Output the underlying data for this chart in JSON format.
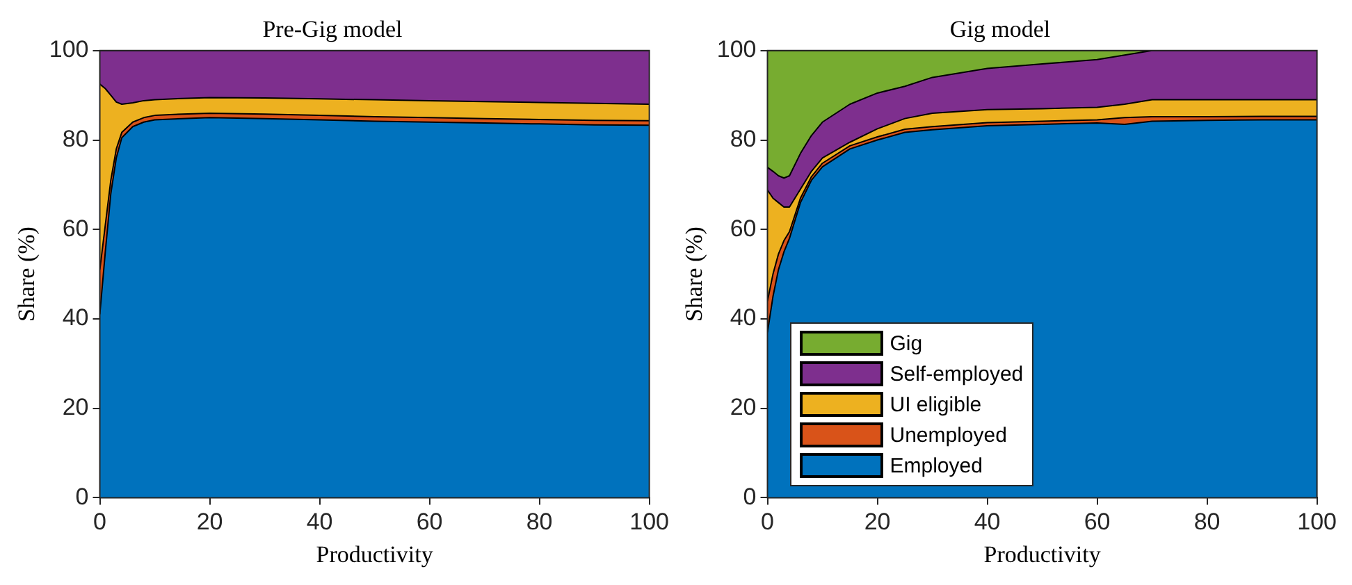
{
  "chart_data": [
    {
      "type": "area",
      "stacked": true,
      "title": "Pre-Gig model",
      "xlabel": "Productivity",
      "ylabel": "Share (%)",
      "xlim": [
        0,
        100
      ],
      "ylim": [
        0,
        100
      ],
      "xticks": [
        0,
        20,
        40,
        60,
        80,
        100
      ],
      "yticks": [
        0,
        20,
        40,
        60,
        80,
        100
      ],
      "grid": false,
      "legend": false,
      "x": [
        0,
        1,
        2,
        3,
        4,
        6,
        8,
        10,
        15,
        20,
        30,
        40,
        50,
        60,
        70,
        80,
        90,
        100
      ],
      "series": [
        {
          "color": "#0072bd",
          "values": [
            41,
            55,
            68,
            76,
            80.5,
            83,
            84,
            84.5,
            84.8,
            85,
            84.8,
            84.5,
            84.2,
            84,
            83.8,
            83.6,
            83.4,
            83.3
          ]
        },
        {
          "color": "#d95319",
          "values": [
            10,
            6,
            3,
            2,
            1.2,
            1,
            1,
            1,
            1,
            1,
            1,
            1,
            1,
            1,
            1,
            1,
            1,
            1
          ]
        },
        {
          "color": "#edb120",
          "values": [
            41.5,
            30.5,
            19,
            10.5,
            6.3,
            4.3,
            3.8,
            3.5,
            3.5,
            3.5,
            3.6,
            3.7,
            3.8,
            3.8,
            3.8,
            3.8,
            3.8,
            3.7
          ]
        },
        {
          "color": "#7e2f8e",
          "values": [
            7.5,
            8.5,
            10,
            11.5,
            12,
            11.7,
            11.2,
            11,
            10.7,
            10.5,
            10.6,
            10.8,
            11,
            11.2,
            11.4,
            11.6,
            11.8,
            12
          ]
        }
      ]
    },
    {
      "type": "area",
      "stacked": true,
      "title": "Gig model",
      "xlabel": "Productivity",
      "ylabel": "Share (%)",
      "xlim": [
        0,
        100
      ],
      "ylim": [
        0,
        100
      ],
      "xticks": [
        0,
        20,
        40,
        60,
        80,
        100
      ],
      "yticks": [
        0,
        20,
        40,
        60,
        80,
        100
      ],
      "grid": false,
      "legend": "bottom left",
      "x": [
        0,
        1,
        2,
        3,
        4,
        6,
        8,
        10,
        15,
        20,
        25,
        30,
        40,
        50,
        60,
        65,
        70,
        80,
        90,
        100
      ],
      "series": [
        {
          "name": "Employed",
          "color": "#0072bd",
          "values": [
            37,
            45,
            51,
            55,
            58,
            66,
            71,
            74,
            78,
            80,
            81.7,
            82.3,
            83.2,
            83.5,
            83.8,
            83.5,
            84.2,
            84.4,
            84.5,
            84.5
          ]
        },
        {
          "name": "Unemployed",
          "color": "#d95319",
          "values": [
            7,
            5,
            3.5,
            2.5,
            1.5,
            1,
            0.8,
            0.8,
            0.7,
            0.7,
            0.7,
            0.7,
            0.7,
            0.7,
            0.7,
            1.5,
            1,
            0.8,
            0.8,
            0.8
          ]
        },
        {
          "name": "UI eligible",
          "color": "#edb120",
          "values": [
            24.8,
            17,
            11.5,
            7.5,
            5.5,
            2,
            1.2,
            1.2,
            0.8,
            1.8,
            2.4,
            3,
            2.9,
            2.8,
            2.8,
            3,
            3.8,
            3.8,
            3.7,
            3.7
          ]
        },
        {
          "name": "Self-employed",
          "color": "#7e2f8e",
          "values": [
            5.1,
            6,
            6,
            6.5,
            7,
            8,
            8,
            8,
            8.5,
            8,
            7.2,
            8,
            9.2,
            10,
            10.7,
            11,
            11,
            11,
            11,
            11
          ]
        },
        {
          "name": "Gig",
          "color": "#77ac30",
          "values": [
            26.1,
            27,
            28,
            28.5,
            28,
            23,
            19,
            16,
            12,
            9.5,
            8,
            6,
            4,
            3,
            2,
            1,
            0,
            0,
            0,
            0
          ]
        }
      ]
    }
  ]
}
